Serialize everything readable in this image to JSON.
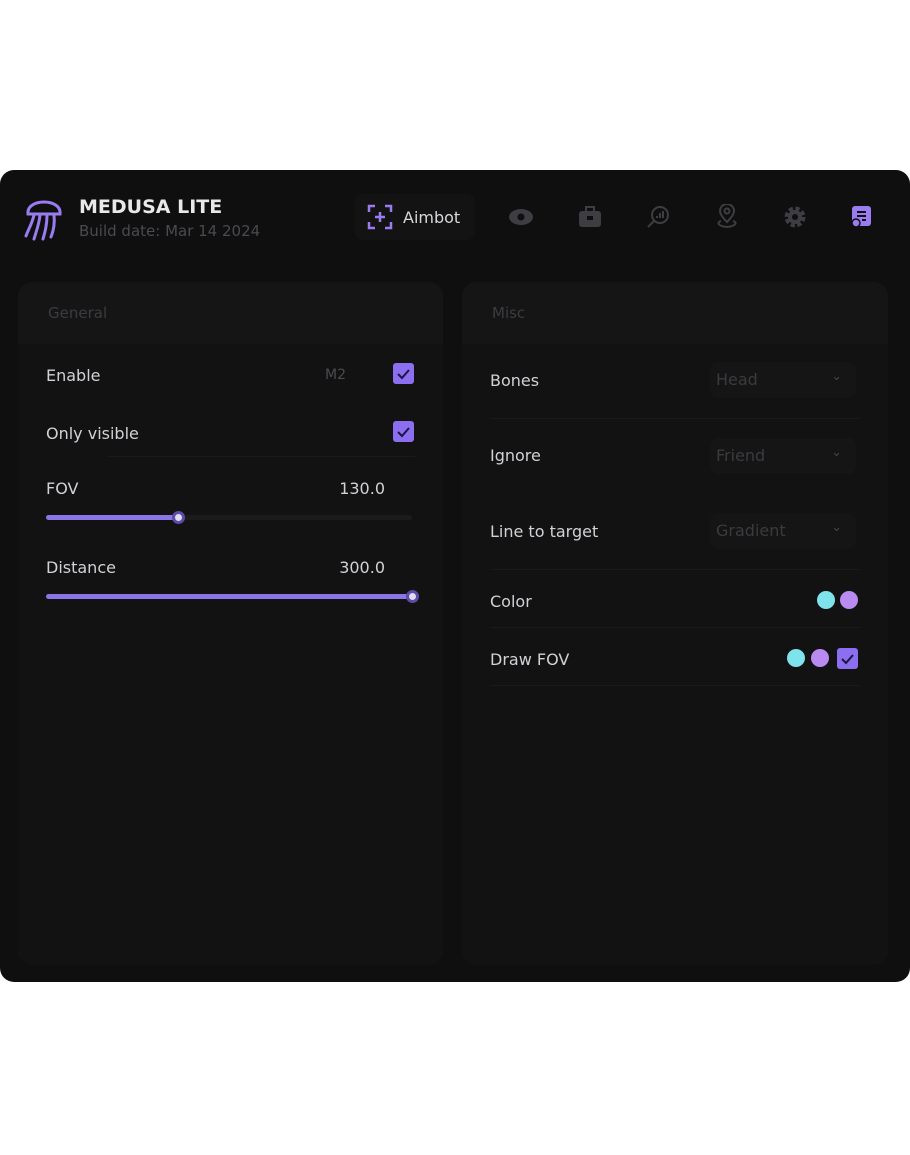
{
  "app": {
    "title": "MEDUSA LITE",
    "build": "Build date: Mar 14 2024"
  },
  "tabs": [
    {
      "label": "Aimbot",
      "icon": "crosshair-icon",
      "active": true
    },
    {
      "icon": "eye-icon"
    },
    {
      "icon": "briefcase-icon"
    },
    {
      "icon": "search-chart-icon"
    },
    {
      "icon": "map-pin-icon"
    },
    {
      "icon": "gear-icon"
    },
    {
      "icon": "config-icon"
    }
  ],
  "colors": {
    "accent": "#8b6ff0",
    "cyan": "#7fe3ec",
    "violet": "#b98af0"
  },
  "general": {
    "title": "General",
    "enable": {
      "label": "Enable",
      "key": "M2",
      "checked": true
    },
    "only_visible": {
      "label": "Only visible",
      "checked": true
    },
    "fov": {
      "label": "FOV",
      "value": "130.0",
      "fraction": 0.36
    },
    "distance": {
      "label": "Distance",
      "value": "300.0",
      "fraction": 1.0
    }
  },
  "misc": {
    "title": "Misc",
    "bones": {
      "label": "Bones",
      "value": "Head"
    },
    "ignore": {
      "label": "Ignore",
      "value": "Friend"
    },
    "line": {
      "label": "Line to target",
      "value": "Gradient"
    },
    "color": {
      "label": "Color"
    },
    "draw_fov": {
      "label": "Draw FOV",
      "checked": true
    }
  }
}
